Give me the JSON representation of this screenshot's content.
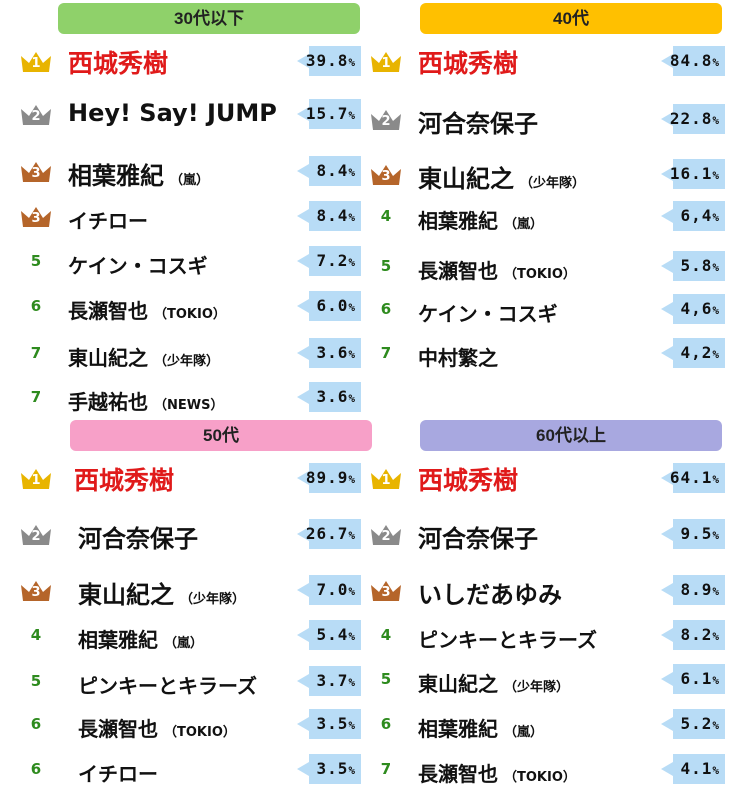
{
  "chart_data": {
    "type": "table",
    "colors": {
      "crown_gold": "#e8b400",
      "crown_silver": "#8a8a8a",
      "crown_bronze": "#b5652a",
      "rank_plain": "#2e8b1e",
      "top_name": "#e01a1a",
      "pct_box": "#b8dcf6"
    },
    "panels": [
      {
        "title": "30代以下",
        "header_color": "#8fd16a",
        "rows": [
          {
            "rank": "1",
            "medal": "gold",
            "name": "西城秀樹",
            "group": "",
            "pct": "39.8"
          },
          {
            "rank": "2",
            "medal": "silver",
            "name": "Hey! Say! JUMP",
            "group": "",
            "pct": "15.7"
          },
          {
            "rank": "3",
            "medal": "bronze",
            "name": "相葉雅紀",
            "group": "（嵐）",
            "pct": "8.4"
          },
          {
            "rank": "3",
            "medal": "bronze",
            "name": "イチロー",
            "group": "",
            "pct": "8.4"
          },
          {
            "rank": "5",
            "medal": "",
            "name": "ケイン・コスギ",
            "group": "",
            "pct": "7.2"
          },
          {
            "rank": "6",
            "medal": "",
            "name": "長瀬智也",
            "group": "（TOKIO）",
            "pct": "6.0"
          },
          {
            "rank": "7",
            "medal": "",
            "name": "東山紀之",
            "group": "（少年隊）",
            "pct": "3.6"
          },
          {
            "rank": "7",
            "medal": "",
            "name": "手越祐也",
            "group": "（NEWS）",
            "pct": "3.6"
          }
        ]
      },
      {
        "title": "40代",
        "header_color": "#ffc000",
        "rows": [
          {
            "rank": "1",
            "medal": "gold",
            "name": "西城秀樹",
            "group": "",
            "pct": "84.8"
          },
          {
            "rank": "2",
            "medal": "silver",
            "name": "河合奈保子",
            "group": "",
            "pct": "22.8"
          },
          {
            "rank": "3",
            "medal": "bronze",
            "name": "東山紀之",
            "group": "（少年隊）",
            "pct": "16.1"
          },
          {
            "rank": "4",
            "medal": "",
            "name": "相葉雅紀",
            "group": "（嵐）",
            "pct": "6,4"
          },
          {
            "rank": "5",
            "medal": "",
            "name": "長瀬智也",
            "group": "（TOKIO）",
            "pct": "5.8"
          },
          {
            "rank": "6",
            "medal": "",
            "name": "ケイン・コスギ",
            "group": "",
            "pct": "4,6"
          },
          {
            "rank": "7",
            "medal": "",
            "name": "中村繁之",
            "group": "",
            "pct": "4,2"
          }
        ]
      },
      {
        "title": "50代",
        "header_color": "#f7a0c8",
        "rows": [
          {
            "rank": "1",
            "medal": "gold",
            "name": "西城秀樹",
            "group": "",
            "pct": "89.9"
          },
          {
            "rank": "2",
            "medal": "silver",
            "name": "河合奈保子",
            "group": "",
            "pct": "26.7"
          },
          {
            "rank": "3",
            "medal": "bronze",
            "name": "東山紀之",
            "group": "（少年隊）",
            "pct": "7.0"
          },
          {
            "rank": "4",
            "medal": "",
            "name": "相葉雅紀",
            "group": "（嵐）",
            "pct": "5.4"
          },
          {
            "rank": "5",
            "medal": "",
            "name": "ピンキーとキラーズ",
            "group": "",
            "pct": "3.7"
          },
          {
            "rank": "6",
            "medal": "",
            "name": "長瀬智也",
            "group": "（TOKIO）",
            "pct": "3.5"
          },
          {
            "rank": "6",
            "medal": "",
            "name": "イチロー",
            "group": "",
            "pct": "3.5"
          }
        ]
      },
      {
        "title": "60代以上",
        "header_color": "#a8a8e0",
        "rows": [
          {
            "rank": "1",
            "medal": "gold",
            "name": "西城秀樹",
            "group": "",
            "pct": "64.1"
          },
          {
            "rank": "2",
            "medal": "silver",
            "name": "河合奈保子",
            "group": "",
            "pct": "9.5"
          },
          {
            "rank": "3",
            "medal": "bronze",
            "name": "いしだあゆみ",
            "group": "",
            "pct": "8.9"
          },
          {
            "rank": "4",
            "medal": "",
            "name": "ピンキーとキラーズ",
            "group": "",
            "pct": "8.2"
          },
          {
            "rank": "5",
            "medal": "",
            "name": "東山紀之",
            "group": "（少年隊）",
            "pct": "6.1"
          },
          {
            "rank": "6",
            "medal": "",
            "name": "相葉雅紀",
            "group": "（嵐）",
            "pct": "5.2"
          },
          {
            "rank": "7",
            "medal": "",
            "name": "長瀬智也",
            "group": "（TOKIO）",
            "pct": "4.1"
          }
        ]
      }
    ],
    "unit": "%"
  }
}
